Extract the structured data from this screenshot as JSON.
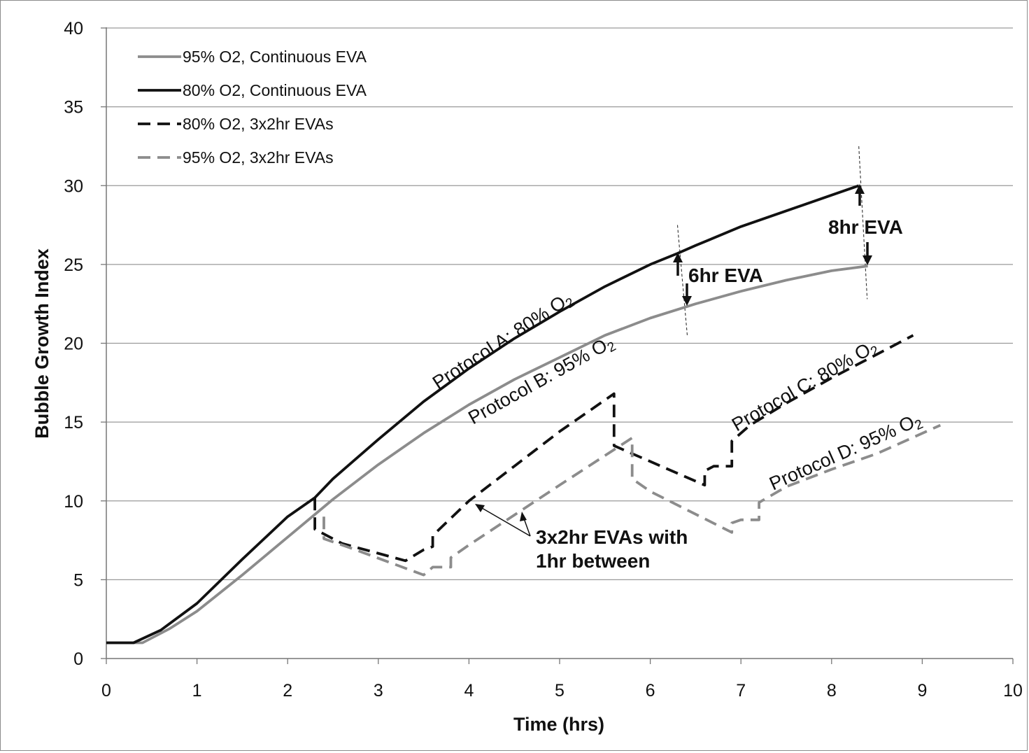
{
  "chart_data": {
    "type": "line",
    "xlabel": "Time (hrs)",
    "ylabel": "Bubble Growth Index",
    "xlim": [
      0,
      10
    ],
    "ylim": [
      0,
      40
    ],
    "x_ticks": [
      "0",
      "1",
      "2",
      "3",
      "4",
      "5",
      "6",
      "7",
      "8",
      "9",
      "10"
    ],
    "y_ticks": [
      "0",
      "5",
      "10",
      "15",
      "20",
      "25",
      "30",
      "35",
      "40"
    ],
    "grid": "horizontal",
    "legend_position": "top-left",
    "series": [
      {
        "name": "95% O2, Continuous EVA",
        "color": "#8c8c8c",
        "dash": "solid",
        "x": [
          0,
          0.4,
          0.7,
          1.0,
          1.5,
          2.0,
          2.5,
          3.0,
          3.5,
          4.0,
          4.5,
          5.0,
          5.5,
          6.0,
          6.5,
          7.0,
          7.5,
          8.0,
          8.4
        ],
        "y": [
          1.0,
          1.0,
          1.9,
          3.0,
          5.3,
          7.7,
          10.1,
          12.3,
          14.3,
          16.1,
          17.7,
          19.1,
          20.5,
          21.6,
          22.5,
          23.3,
          24.0,
          24.6,
          24.9
        ]
      },
      {
        "name": "80% O2, Continuous EVA",
        "color": "#111111",
        "dash": "solid",
        "x": [
          0,
          0.3,
          0.6,
          1.0,
          1.5,
          2.0,
          2.3,
          2.5,
          3.0,
          3.5,
          4.0,
          4.5,
          5.0,
          5.5,
          6.0,
          6.3,
          6.5,
          7.0,
          7.5,
          8.0,
          8.3
        ],
        "y": [
          1.0,
          1.0,
          1.8,
          3.5,
          6.3,
          9.0,
          10.2,
          11.4,
          13.9,
          16.3,
          18.4,
          20.3,
          22.0,
          23.6,
          25.0,
          25.7,
          26.2,
          27.4,
          28.4,
          29.4,
          30.0
        ]
      },
      {
        "name": "80% O2, 3x2hr EVAs",
        "color": "#111111",
        "dash": "dashed",
        "x": [
          2.3,
          2.3,
          2.6,
          3.3,
          3.5,
          3.6,
          3.6,
          4.0,
          4.5,
          5.0,
          5.6,
          5.6,
          5.8,
          6.6,
          6.6,
          6.7,
          6.9,
          6.9,
          7.1,
          7.5,
          8.0,
          8.5,
          8.9
        ],
        "y": [
          10.2,
          8.2,
          7.3,
          6.2,
          6.9,
          7.1,
          7.8,
          10.0,
          12.2,
          14.4,
          16.8,
          13.5,
          13.0,
          11.0,
          11.9,
          12.2,
          12.2,
          13.8,
          14.8,
          16.2,
          17.8,
          19.3,
          20.5
        ]
      },
      {
        "name": "95% O2, 3x2hr EVAs",
        "color": "#8c8c8c",
        "dash": "dashed",
        "x": [
          2.4,
          2.4,
          2.7,
          3.5,
          3.6,
          3.8,
          3.8,
          4.0,
          4.5,
          5.0,
          5.8,
          5.8,
          6.0,
          6.9,
          6.9,
          7.0,
          7.2,
          7.2,
          7.5,
          8.0,
          8.5,
          9.2
        ],
        "y": [
          9.0,
          7.6,
          7.0,
          5.3,
          5.8,
          5.8,
          6.4,
          7.2,
          9.1,
          11.0,
          14.0,
          11.4,
          10.6,
          8.0,
          8.6,
          8.8,
          8.8,
          9.9,
          10.9,
          12.0,
          13.0,
          14.8
        ]
      }
    ],
    "annotations": {
      "protocol_a": "Protocol A: 80% O2",
      "protocol_b": "Protocol B: 95% O2",
      "protocol_c": "Protocol C: 80% O2",
      "protocol_d": "Protocol D: 95% O2",
      "eva_6hr": "6hr EVA",
      "eva_8hr": "8hr EVA",
      "evas_line1": "3x2hr EVAs with",
      "evas_line2": "1hr between"
    }
  }
}
